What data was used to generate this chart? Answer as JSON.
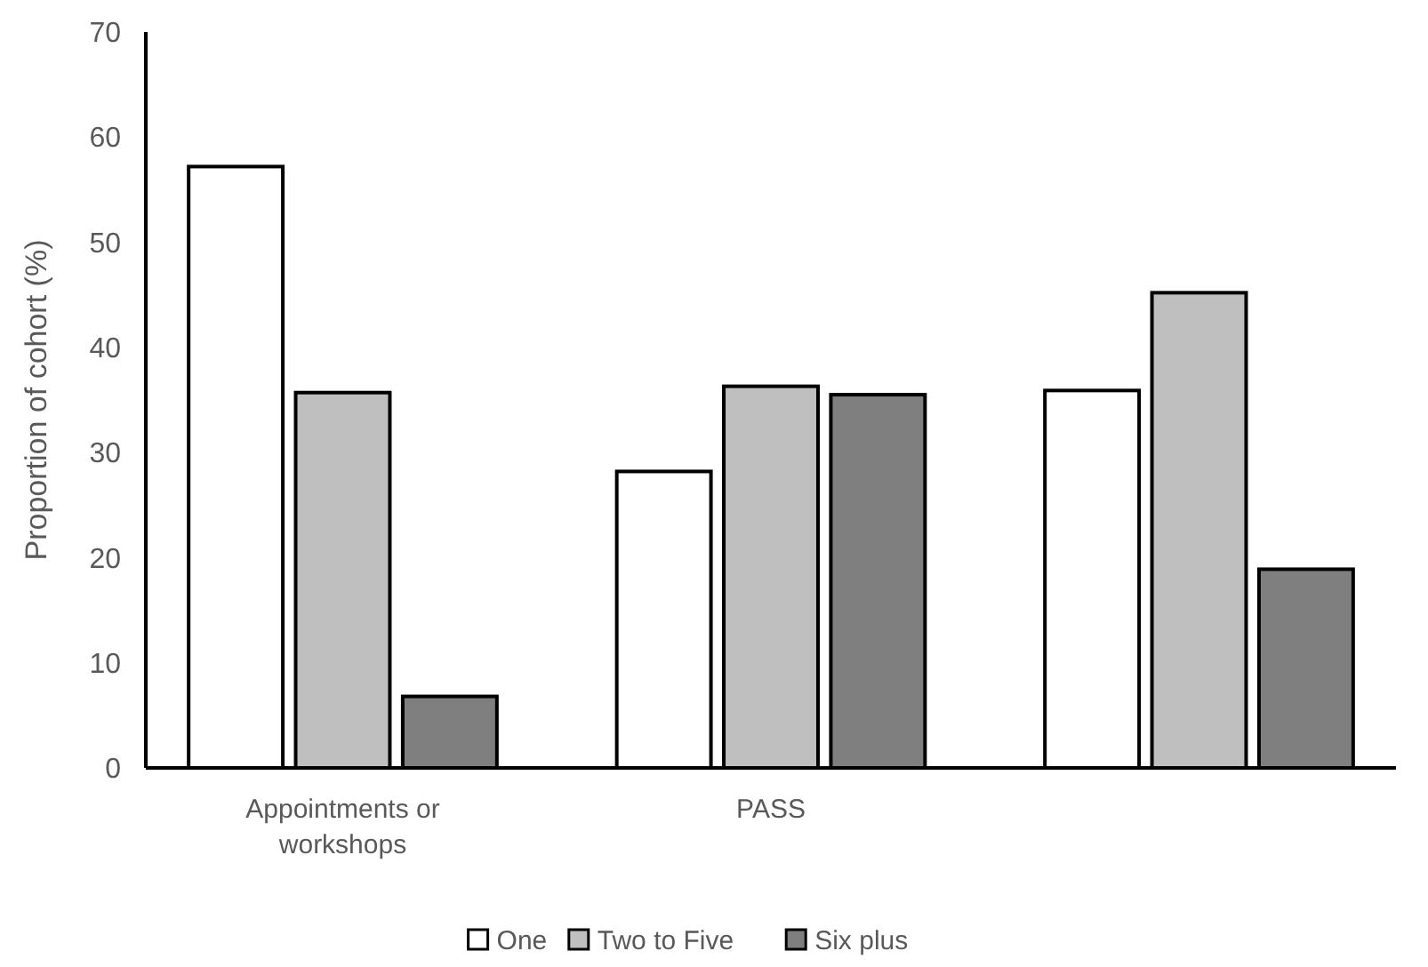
{
  "chart_data": {
    "type": "bar",
    "ylabel": "Proportion of cohort (%)",
    "categories": [
      "Appointments or workshops",
      "PASS",
      null
    ],
    "series": [
      {
        "name": "One",
        "color": "#ffffff",
        "values": [
          57.2,
          28.2,
          35.9
        ]
      },
      {
        "name": "Two to Five",
        "color": "#bfbfbf",
        "values": [
          35.7,
          36.3,
          45.2
        ]
      },
      {
        "name": "Six plus",
        "color": "#7f7f7f",
        "values": [
          6.8,
          35.5,
          18.9
        ]
      }
    ],
    "ylim": [
      0,
      70
    ],
    "yticks": [
      0,
      10,
      20,
      30,
      40,
      50,
      60,
      70
    ],
    "grid": false,
    "legend": "bottom"
  }
}
